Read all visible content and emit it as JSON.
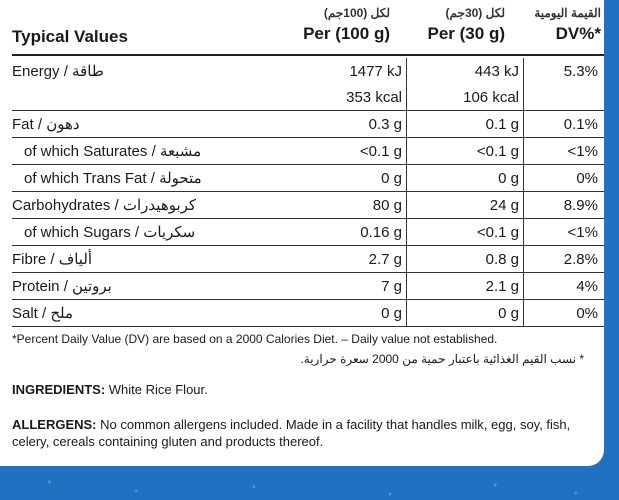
{
  "header": {
    "label": "Typical Values",
    "col1_ar": "لكل (100جم)",
    "col1_en": "Per (100 g)",
    "col2_ar": "لكل (30جم)",
    "col2_en": "Per (30 g)",
    "col3_ar": "القيمة اليومية",
    "col3_en": "DV%*"
  },
  "rows": [
    {
      "name": "Energy / طاقة",
      "c1": "1477 kJ",
      "c2": "443 kJ",
      "c3": "5.3%",
      "sub": false,
      "line": false
    },
    {
      "name": "",
      "c1": "353 kcal",
      "c2": "106 kcal",
      "c3": "",
      "sub": false,
      "line": true
    },
    {
      "name": "Fat / دهون",
      "c1": "0.3 g",
      "c2": "0.1 g",
      "c3": "0.1%",
      "sub": false,
      "line": true
    },
    {
      "name": "of which Saturates / مشبعة",
      "c1": "<0.1 g",
      "c2": "<0.1 g",
      "c3": "<1%",
      "sub": true,
      "line": true
    },
    {
      "name": "of which Trans Fat / متحولة",
      "c1": "0 g",
      "c2": "0 g",
      "c3": "0%",
      "sub": true,
      "line": true
    },
    {
      "name": "Carbohydrates / كربوهيدرات",
      "c1": "80 g",
      "c2": "24 g",
      "c3": "8.9%",
      "sub": false,
      "line": true
    },
    {
      "name": "of which Sugars / سكريات",
      "c1": "0.16 g",
      "c2": "<0.1 g",
      "c3": "<1%",
      "sub": true,
      "line": true
    },
    {
      "name": "Fibre / ألياف",
      "c1": "2.7 g",
      "c2": "0.8 g",
      "c3": "2.8%",
      "sub": false,
      "line": true
    },
    {
      "name": "Protein / بروتين",
      "c1": "7 g",
      "c2": "2.1 g",
      "c3": "4%",
      "sub": false,
      "line": true
    },
    {
      "name": "Salt / ملح",
      "c1": "0 g",
      "c2": "0 g",
      "c3": "0%",
      "sub": false,
      "line": true
    }
  ],
  "notes": {
    "en": "*Percent Daily Value (DV) are based on a 2000 Calories Diet. – Daily value not established.",
    "ar": "* نسب القيم الغذائية باعتبار حمية من 2000 سعرة حرارية."
  },
  "ingredients": {
    "label": "INGREDIENTS:",
    "text": " White Rice Flour."
  },
  "allergens": {
    "label": "ALLERGENS:",
    "text": " No common allergens included. Made in a facility that handles milk, egg, soy, fish, celery, cereals containing gluten and products thereof."
  }
}
